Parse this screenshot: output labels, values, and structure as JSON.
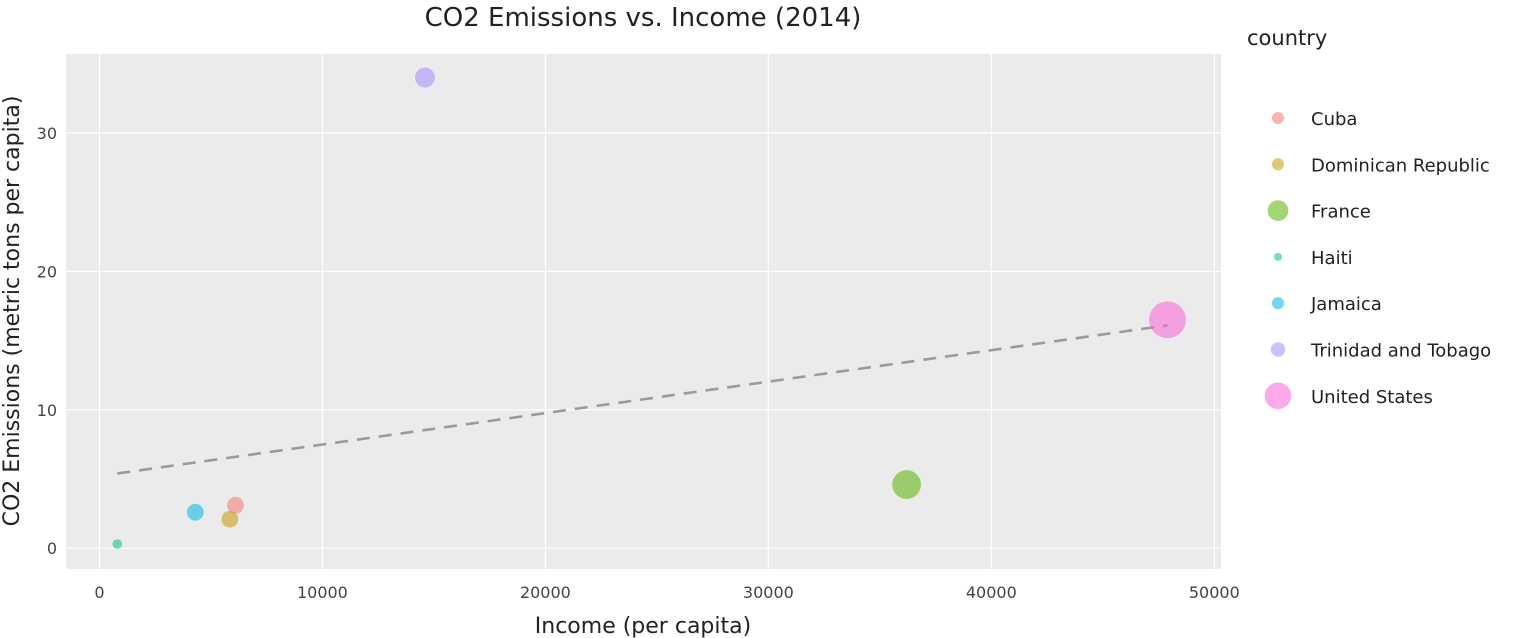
{
  "chart_data": {
    "type": "scatter",
    "title": "CO2 Emissions vs. Income (2014)",
    "xlabel": "Income (per capita)",
    "ylabel": "CO2 Emissions (metric tons per capita)",
    "xlim": [
      -1500,
      50300
    ],
    "ylim": [
      -1.5,
      35.7
    ],
    "x_ticks": [
      0,
      10000,
      20000,
      30000,
      40000,
      50000
    ],
    "y_ticks": [
      0,
      10,
      20,
      30
    ],
    "grid": true,
    "background": "#ebebeb",
    "legend_title": "country",
    "legend_position": "right",
    "series": [
      {
        "name": "Cuba",
        "color": "#f8766d",
        "size": 0.22,
        "x": 6100,
        "y": 3.1
      },
      {
        "name": "Dominican Republic",
        "color": "#c49a00",
        "size": 0.22,
        "x": 5850,
        "y": 2.1
      },
      {
        "name": "France",
        "color": "#53b400",
        "size": 0.52,
        "x": 36200,
        "y": 4.6
      },
      {
        "name": "Haiti",
        "color": "#00c094",
        "size": 0.04,
        "x": 800,
        "y": 0.3
      },
      {
        "name": "Jamaica",
        "color": "#00b6eb",
        "size": 0.22,
        "x": 4300,
        "y": 2.6
      },
      {
        "name": "Trinidad and Tobago",
        "color": "#a58aff",
        "size": 0.3,
        "x": 14600,
        "y": 34.0
      },
      {
        "name": "United States",
        "color": "#fb61d7",
        "size": 0.72,
        "x": 47900,
        "y": 16.5
      }
    ],
    "trendline": {
      "style": "dashed",
      "color": "#9b9b9b",
      "x": [
        800,
        47900
      ],
      "y": [
        5.4,
        16.1
      ]
    }
  }
}
